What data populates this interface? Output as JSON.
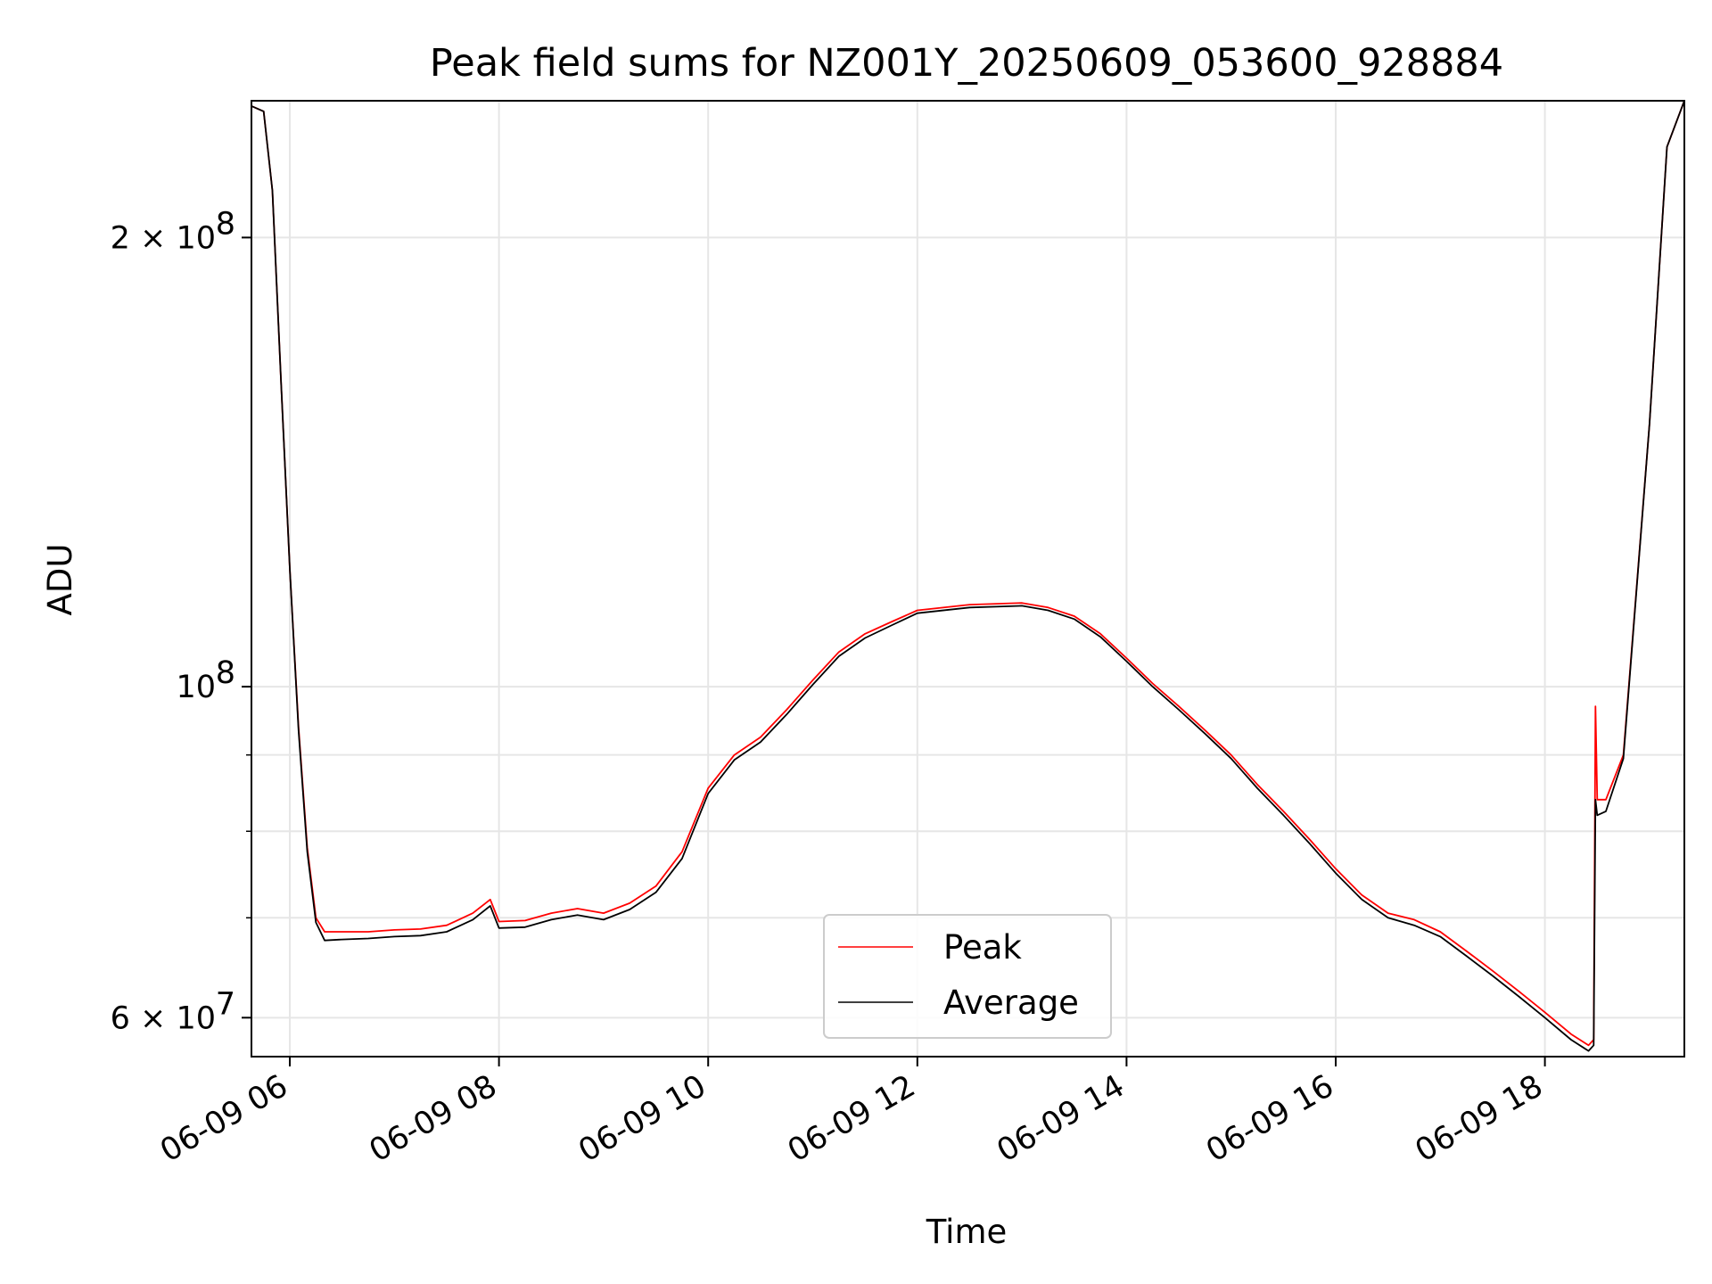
{
  "chart_data": {
    "type": "line",
    "title": "Peak field sums for NZ001Y_20250609_053600_928884",
    "xlabel": "Time",
    "ylabel": "ADU",
    "yscale": "log",
    "grid": true,
    "legend_position": "bottom-center",
    "xlim": [
      "2025-06-09 05:38",
      "2025-06-09 19:20"
    ],
    "ylim": [
      56500000,
      247000000
    ],
    "x_ticks": [
      {
        "value": "2025-06-09 06:00",
        "label": "06-09 06"
      },
      {
        "value": "2025-06-09 08:00",
        "label": "06-09 08"
      },
      {
        "value": "2025-06-09 10:00",
        "label": "06-09 10"
      },
      {
        "value": "2025-06-09 12:00",
        "label": "06-09 12"
      },
      {
        "value": "2025-06-09 14:00",
        "label": "06-09 14"
      },
      {
        "value": "2025-06-09 16:00",
        "label": "06-09 16"
      },
      {
        "value": "2025-06-09 18:00",
        "label": "06-09 18"
      }
    ],
    "y_ticks": [
      {
        "value": 60000000,
        "label": "6 × 10",
        "exp": "7"
      },
      {
        "value": 100000000,
        "label": "10",
        "exp": "8"
      },
      {
        "value": 200000000,
        "label": "2 × 10",
        "exp": "8"
      }
    ],
    "y_minor_ticks": [
      70000000,
      80000000,
      90000000
    ],
    "series": [
      {
        "name": "Peak",
        "color": "#ff0000",
        "x": [
          "2025-06-09 05:38",
          "2025-06-09 05:45",
          "2025-06-09 05:50",
          "2025-06-09 05:55",
          "2025-06-09 06:00",
          "2025-06-09 06:05",
          "2025-06-09 06:10",
          "2025-06-09 06:15",
          "2025-06-09 06:20",
          "2025-06-09 06:30",
          "2025-06-09 06:45",
          "2025-06-09 07:00",
          "2025-06-09 07:15",
          "2025-06-09 07:30",
          "2025-06-09 07:45",
          "2025-06-09 07:55",
          "2025-06-09 08:00",
          "2025-06-09 08:15",
          "2025-06-09 08:30",
          "2025-06-09 08:45",
          "2025-06-09 09:00",
          "2025-06-09 09:15",
          "2025-06-09 09:30",
          "2025-06-09 09:45",
          "2025-06-09 10:00",
          "2025-06-09 10:15",
          "2025-06-09 10:30",
          "2025-06-09 10:45",
          "2025-06-09 11:00",
          "2025-06-09 11:15",
          "2025-06-09 11:30",
          "2025-06-09 11:45",
          "2025-06-09 12:00",
          "2025-06-09 12:30",
          "2025-06-09 13:00",
          "2025-06-09 13:15",
          "2025-06-09 13:30",
          "2025-06-09 13:45",
          "2025-06-09 14:00",
          "2025-06-09 14:15",
          "2025-06-09 14:30",
          "2025-06-09 14:45",
          "2025-06-09 15:00",
          "2025-06-09 15:15",
          "2025-06-09 15:30",
          "2025-06-09 15:45",
          "2025-06-09 16:00",
          "2025-06-09 16:15",
          "2025-06-09 16:30",
          "2025-06-09 16:45",
          "2025-06-09 17:00",
          "2025-06-09 17:15",
          "2025-06-09 17:30",
          "2025-06-09 17:45",
          "2025-06-09 18:00",
          "2025-06-09 18:15",
          "2025-06-09 18:25",
          "2025-06-09 18:28",
          "2025-06-09 18:29",
          "2025-06-09 18:30",
          "2025-06-09 18:35",
          "2025-06-09 18:45",
          "2025-06-09 19:00",
          "2025-06-09 19:10",
          "2025-06-09 19:20"
        ],
        "values": [
          245000000,
          243000000,
          215000000,
          160000000,
          120000000,
          94000000,
          78000000,
          70000000,
          68500000,
          68500000,
          68500000,
          68700000,
          68800000,
          69200000,
          70500000,
          72000000,
          69600000,
          69700000,
          70500000,
          71000000,
          70500000,
          71600000,
          73500000,
          77500000,
          85500000,
          90000000,
          92500000,
          96500000,
          101000000,
          105500000,
          108500000,
          110500000,
          112500000,
          113500000,
          113800000,
          113000000,
          111500000,
          108500000,
          104500000,
          100500000,
          97000000,
          93500000,
          90000000,
          86000000,
          82500000,
          79000000,
          75500000,
          72500000,
          70500000,
          69800000,
          68500000,
          66500000,
          64500000,
          62500000,
          60500000,
          58500000,
          57500000,
          58000000,
          97000000,
          84000000,
          84000000,
          90000000,
          150000000,
          230000000,
          247000000
        ]
      },
      {
        "name": "Average",
        "color": "#000000",
        "x": [
          "2025-06-09 05:38",
          "2025-06-09 05:45",
          "2025-06-09 05:50",
          "2025-06-09 05:55",
          "2025-06-09 06:00",
          "2025-06-09 06:05",
          "2025-06-09 06:10",
          "2025-06-09 06:15",
          "2025-06-09 06:20",
          "2025-06-09 06:30",
          "2025-06-09 06:45",
          "2025-06-09 07:00",
          "2025-06-09 07:15",
          "2025-06-09 07:30",
          "2025-06-09 07:45",
          "2025-06-09 07:55",
          "2025-06-09 08:00",
          "2025-06-09 08:15",
          "2025-06-09 08:30",
          "2025-06-09 08:45",
          "2025-06-09 09:00",
          "2025-06-09 09:15",
          "2025-06-09 09:30",
          "2025-06-09 09:45",
          "2025-06-09 10:00",
          "2025-06-09 10:15",
          "2025-06-09 10:30",
          "2025-06-09 10:45",
          "2025-06-09 11:00",
          "2025-06-09 11:15",
          "2025-06-09 11:30",
          "2025-06-09 11:45",
          "2025-06-09 12:00",
          "2025-06-09 12:30",
          "2025-06-09 13:00",
          "2025-06-09 13:15",
          "2025-06-09 13:30",
          "2025-06-09 13:45",
          "2025-06-09 14:00",
          "2025-06-09 14:15",
          "2025-06-09 14:30",
          "2025-06-09 14:45",
          "2025-06-09 15:00",
          "2025-06-09 15:15",
          "2025-06-09 15:30",
          "2025-06-09 15:45",
          "2025-06-09 16:00",
          "2025-06-09 16:15",
          "2025-06-09 16:30",
          "2025-06-09 16:45",
          "2025-06-09 17:00",
          "2025-06-09 17:15",
          "2025-06-09 17:30",
          "2025-06-09 17:45",
          "2025-06-09 18:00",
          "2025-06-09 18:15",
          "2025-06-09 18:25",
          "2025-06-09 18:28",
          "2025-06-09 18:29",
          "2025-06-09 18:30",
          "2025-06-09 18:35",
          "2025-06-09 18:45",
          "2025-06-09 19:00",
          "2025-06-09 19:10",
          "2025-06-09 19:20"
        ],
        "values": [
          245000000,
          243000000,
          215000000,
          160000000,
          120000000,
          93500000,
          77500000,
          69500000,
          67600000,
          67700000,
          67800000,
          68000000,
          68100000,
          68500000,
          69800000,
          71300000,
          68900000,
          69000000,
          69800000,
          70300000,
          69800000,
          70900000,
          72800000,
          76700000,
          84800000,
          89300000,
          91800000,
          95800000,
          100300000,
          104800000,
          107800000,
          109900000,
          112000000,
          113000000,
          113300000,
          112500000,
          111000000,
          108000000,
          104000000,
          100000000,
          96500000,
          93000000,
          89500000,
          85500000,
          82000000,
          78500000,
          75000000,
          72000000,
          70000000,
          69200000,
          68000000,
          66000000,
          64000000,
          62000000,
          60000000,
          58000000,
          57000000,
          57500000,
          84000000,
          82000000,
          82500000,
          89500000,
          150000000,
          230000000,
          247000000
        ]
      }
    ]
  }
}
